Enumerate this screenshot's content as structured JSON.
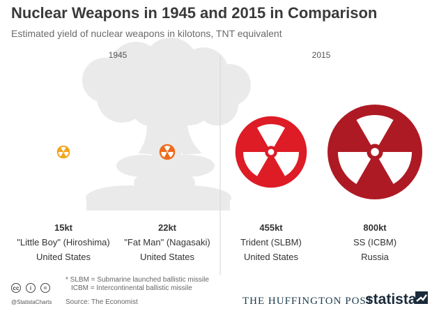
{
  "header": {
    "title": "Nuclear Weapons in 1945 and 2015 in Comparison",
    "subtitle": "Estimated yield of nuclear weapons in kilotons, TNT equivalent"
  },
  "chart_data": {
    "type": "bubble",
    "groups": [
      "1945",
      "2015"
    ],
    "unit": "kt",
    "items": [
      {
        "group": "1945",
        "value": 15,
        "label": "15kt",
        "name": "\"Little Boy\" (Hiroshima)",
        "country": "United States",
        "color": "#f2a51e"
      },
      {
        "group": "1945",
        "value": 22,
        "label": "22kt",
        "name": "\"Fat Man\" (Nagasaki)",
        "country": "United States",
        "color": "#ee6b1c"
      },
      {
        "group": "2015",
        "value": 455,
        "label": "455kt",
        "name": "Trident (SLBM)",
        "country": "United States",
        "color": "#dd1c26"
      },
      {
        "group": "2015",
        "value": 800,
        "label": "800kt",
        "name": "SS (ICBM)",
        "country": "Russia",
        "color": "#ae1a24"
      }
    ]
  },
  "footer": {
    "footnote_1": "* SLBM = Submarine launched ballistic missile",
    "footnote_2": "ICBM = Intercontinental ballistic missile",
    "source": "Source: The Economist",
    "handle": "@StatistaCharts",
    "publisher": "The Huffington Post",
    "brand": "statista",
    "license_icons": [
      "cc-icon",
      "attribution-icon",
      "no-derivatives-icon"
    ]
  }
}
